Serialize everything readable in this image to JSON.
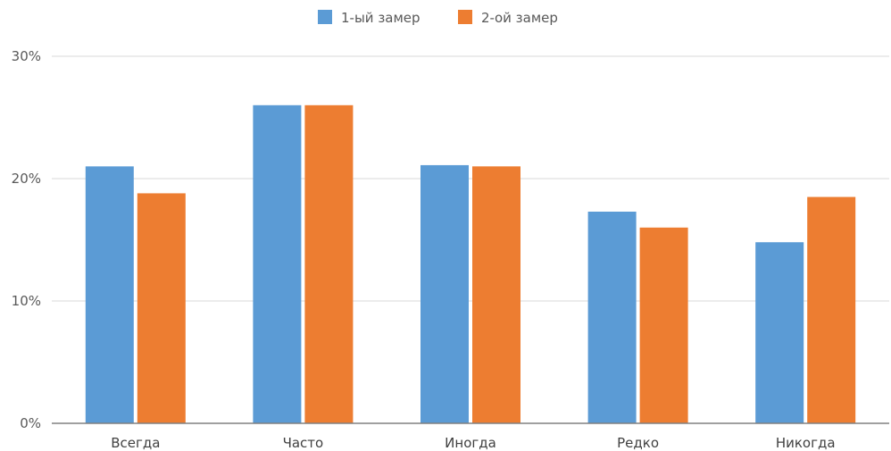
{
  "chart_data": {
    "type": "bar",
    "categories": [
      "Всегда",
      "Часто",
      "Иногда",
      "Редко",
      "Никогда"
    ],
    "series": [
      {
        "name": "1-ый замер",
        "values": [
          21,
          26,
          21.1,
          17.3,
          14.8
        ],
        "color": "#5B9BD5"
      },
      {
        "name": "2-ой замер",
        "values": [
          18.8,
          26,
          21,
          16,
          18.5
        ],
        "color": "#ED7D31"
      }
    ],
    "ylim": [
      0,
      30
    ],
    "yticks": [
      0,
      10,
      20,
      30
    ],
    "ytick_labels": [
      "0%",
      "10%",
      "20%",
      "30%"
    ],
    "grid": true,
    "legend_position": "top-center",
    "title": "",
    "xlabel": "",
    "ylabel": ""
  }
}
